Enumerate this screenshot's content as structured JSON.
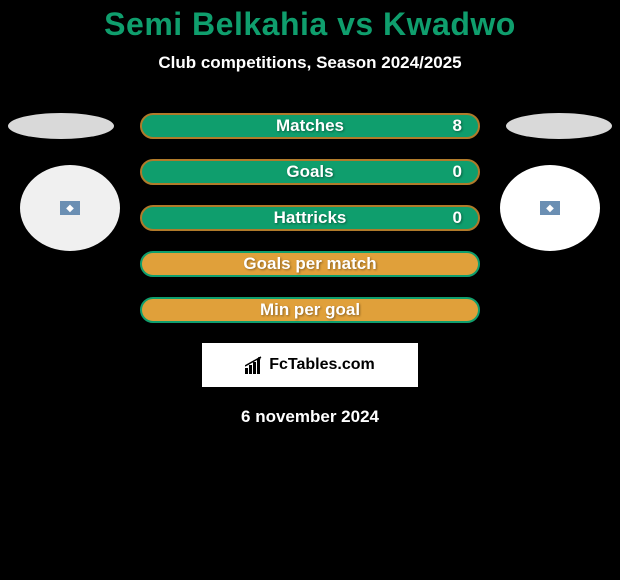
{
  "title": "Semi Belkahia vs Kwadwo",
  "title_color": "#0f9e6d",
  "subtitle": "Club competitions, Season 2024/2025",
  "background_color": "#000000",
  "player_left": {
    "ellipse_color": "#d9d9d9",
    "circle_color": "#f0f0f0",
    "flag_bg": "#6b8fb3",
    "flag_symbol": "◆"
  },
  "player_right": {
    "ellipse_color": "#d9d9d9",
    "circle_color": "#ffffff",
    "flag_bg": "#6b8fb3",
    "flag_symbol": "◆"
  },
  "stats": [
    {
      "label": "Matches",
      "value_right": "8",
      "bg": "#0f9e6d",
      "border": "#b07a2a"
    },
    {
      "label": "Goals",
      "value_right": "0",
      "bg": "#0f9e6d",
      "border": "#b07a2a"
    },
    {
      "label": "Hattricks",
      "value_right": "0",
      "bg": "#0f9e6d",
      "border": "#b07a2a"
    },
    {
      "label": "Goals per match",
      "value_right": "",
      "bg": "#e0a03a",
      "border": "#0f9e6d"
    },
    {
      "label": "Min per goal",
      "value_right": "",
      "bg": "#e0a03a",
      "border": "#0f9e6d"
    }
  ],
  "footer_brand": "FcTables.com",
  "date": "6 november 2024"
}
